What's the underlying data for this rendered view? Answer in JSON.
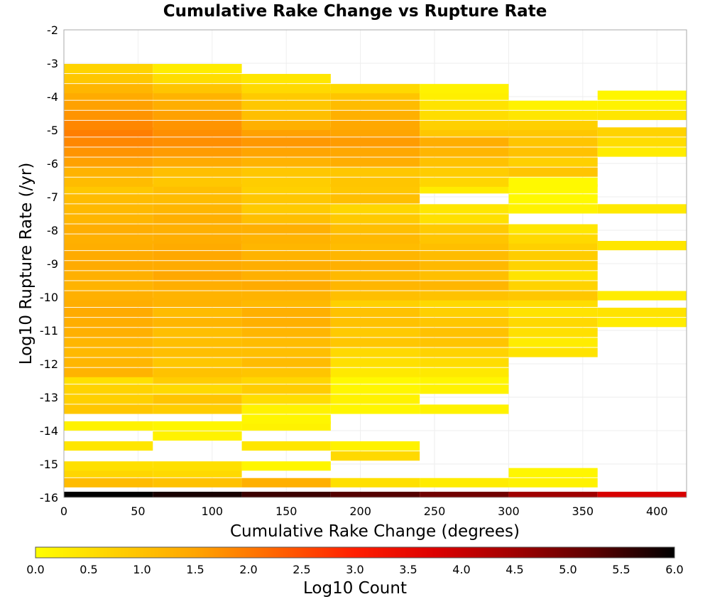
{
  "chart_data": {
    "type": "heatmap",
    "title": "Cumulative Rake Change vs Rupture Rate",
    "xlabel": "Cumulative Rake Change (degrees)",
    "ylabel": "Log10 Rupture Rate (/yr)",
    "xlim": [
      0,
      420
    ],
    "ylim": [
      -16,
      -2
    ],
    "x_ticks": [
      "0",
      "50",
      "100",
      "150",
      "200",
      "250",
      "300",
      "350",
      "400"
    ],
    "y_ticks": [
      "-2",
      "-3",
      "-4",
      "-5",
      "-6",
      "-7",
      "-8",
      "-9",
      "-10",
      "-11",
      "-12",
      "-13",
      "-14",
      "-15",
      "-16"
    ],
    "grid": true,
    "x_bin_edges": [
      0,
      60,
      120,
      180,
      240,
      300,
      360,
      420
    ],
    "y_bin_width": 0.28,
    "y_bin_bottom": -16,
    "columns": [
      {
        "x_bin": "0-60",
        "cells": [
          [
            -16.0,
            6.0
          ],
          [
            -15.7,
            1.1
          ],
          [
            -15.4,
            0.65
          ],
          [
            -15.2,
            0.5
          ],
          [
            -14.6,
            0.4
          ],
          [
            -14.0,
            0.2
          ],
          [
            -13.5,
            0.9
          ],
          [
            -13.2,
            0.75
          ],
          [
            -12.9,
            0.7
          ],
          [
            -12.6,
            0.5
          ],
          [
            -12.4,
            1.25
          ],
          [
            -12.1,
            1.2
          ],
          [
            -11.8,
            1.15
          ],
          [
            -11.5,
            1.2
          ],
          [
            -11.2,
            1.3
          ],
          [
            -10.9,
            1.35
          ],
          [
            -10.6,
            1.4
          ],
          [
            -10.3,
            1.35
          ],
          [
            -10.1,
            1.3
          ],
          [
            -9.8,
            1.25
          ],
          [
            -9.5,
            1.3
          ],
          [
            -9.2,
            1.4
          ],
          [
            -8.9,
            1.4
          ],
          [
            -8.6,
            1.35
          ],
          [
            -8.4,
            1.3
          ],
          [
            -8.1,
            1.35
          ],
          [
            -7.8,
            1.2
          ],
          [
            -7.5,
            1.15
          ],
          [
            -7.2,
            1.1
          ],
          [
            -6.9,
            0.9
          ],
          [
            -6.7,
            1.1
          ],
          [
            -6.4,
            1.25
          ],
          [
            -6.1,
            1.55
          ],
          [
            -5.8,
            1.7
          ],
          [
            -5.5,
            1.85
          ],
          [
            -5.2,
            1.95
          ],
          [
            -5.0,
            1.85
          ],
          [
            -4.7,
            1.7
          ],
          [
            -4.4,
            1.55
          ],
          [
            -4.1,
            1.4
          ],
          [
            -3.9,
            1.2
          ],
          [
            -3.6,
            0.9
          ],
          [
            -3.3,
            0.7
          ]
        ]
      },
      {
        "x_bin": "60-120",
        "cells": [
          [
            -16.0,
            5.8
          ],
          [
            -15.7,
            1.0
          ],
          [
            -15.4,
            0.6
          ],
          [
            -15.2,
            0.5
          ],
          [
            -14.3,
            0.2
          ],
          [
            -14.0,
            0.15
          ],
          [
            -13.5,
            0.8
          ],
          [
            -13.2,
            0.95
          ],
          [
            -12.9,
            0.6
          ],
          [
            -12.6,
            0.8
          ],
          [
            -12.4,
            1.0
          ],
          [
            -12.1,
            0.9
          ],
          [
            -11.8,
            1.05
          ],
          [
            -11.5,
            1.05
          ],
          [
            -11.2,
            1.05
          ],
          [
            -10.9,
            1.2
          ],
          [
            -10.6,
            1.1
          ],
          [
            -10.3,
            1.25
          ],
          [
            -10.1,
            1.25
          ],
          [
            -9.8,
            1.35
          ],
          [
            -9.5,
            1.45
          ],
          [
            -9.2,
            1.4
          ],
          [
            -8.9,
            1.45
          ],
          [
            -8.6,
            1.4
          ],
          [
            -8.4,
            1.35
          ],
          [
            -8.1,
            1.3
          ],
          [
            -7.8,
            1.3
          ],
          [
            -7.5,
            1.2
          ],
          [
            -7.2,
            1.1
          ],
          [
            -6.9,
            1.05
          ],
          [
            -6.7,
            0.9
          ],
          [
            -6.4,
            1.05
          ],
          [
            -6.1,
            1.4
          ],
          [
            -5.8,
            1.6
          ],
          [
            -5.5,
            1.75
          ],
          [
            -5.2,
            1.75
          ],
          [
            -5.0,
            1.7
          ],
          [
            -4.7,
            1.55
          ],
          [
            -4.4,
            1.35
          ],
          [
            -4.1,
            1.25
          ],
          [
            -3.9,
            0.95
          ],
          [
            -3.6,
            0.55
          ],
          [
            -3.3,
            0.3
          ]
        ]
      },
      {
        "x_bin": "120-180",
        "cells": [
          [
            -16.0,
            5.5
          ],
          [
            -15.7,
            1.3
          ],
          [
            -15.2,
            0.15
          ],
          [
            -14.6,
            0.4
          ],
          [
            -14.0,
            0.2
          ],
          [
            -13.8,
            0.15
          ],
          [
            -13.5,
            0.2
          ],
          [
            -13.2,
            0.55
          ],
          [
            -12.9,
            0.8
          ],
          [
            -12.6,
            0.65
          ],
          [
            -12.4,
            0.95
          ],
          [
            -12.1,
            1.1
          ],
          [
            -11.8,
            1.05
          ],
          [
            -11.5,
            1.1
          ],
          [
            -11.2,
            1.2
          ],
          [
            -10.9,
            1.3
          ],
          [
            -10.6,
            1.3
          ],
          [
            -10.3,
            1.15
          ],
          [
            -10.1,
            1.25
          ],
          [
            -9.8,
            1.4
          ],
          [
            -9.5,
            1.3
          ],
          [
            -9.2,
            1.35
          ],
          [
            -8.9,
            1.25
          ],
          [
            -8.6,
            1.2
          ],
          [
            -8.4,
            1.25
          ],
          [
            -8.1,
            1.3
          ],
          [
            -7.8,
            1.05
          ],
          [
            -7.5,
            0.85
          ],
          [
            -7.2,
            0.9
          ],
          [
            -6.9,
            0.75
          ],
          [
            -6.7,
            0.8
          ],
          [
            -6.4,
            0.9
          ],
          [
            -6.1,
            1.25
          ],
          [
            -5.8,
            1.5
          ],
          [
            -5.5,
            1.65
          ],
          [
            -5.2,
            1.55
          ],
          [
            -5.0,
            1.3
          ],
          [
            -4.7,
            1.05
          ],
          [
            -4.4,
            0.9
          ],
          [
            -4.1,
            0.85
          ],
          [
            -3.9,
            0.6
          ],
          [
            -3.6,
            0.4
          ]
        ]
      },
      {
        "x_bin": "180-240",
        "cells": [
          [
            -16.0,
            5.3
          ],
          [
            -15.7,
            0.5
          ],
          [
            -14.9,
            0.6
          ],
          [
            -14.6,
            0.2
          ],
          [
            -13.5,
            0.15
          ],
          [
            -13.2,
            0.2
          ],
          [
            -12.9,
            0.15
          ],
          [
            -12.6,
            0.1
          ],
          [
            -12.4,
            0.35
          ],
          [
            -12.1,
            0.5
          ],
          [
            -11.8,
            0.6
          ],
          [
            -11.5,
            0.9
          ],
          [
            -11.2,
            0.85
          ],
          [
            -10.9,
            1.0
          ],
          [
            -10.6,
            1.0
          ],
          [
            -10.3,
            0.75
          ],
          [
            -10.1,
            1.05
          ],
          [
            -9.8,
            1.2
          ],
          [
            -9.5,
            1.15
          ],
          [
            -9.2,
            1.3
          ],
          [
            -8.9,
            1.2
          ],
          [
            -8.6,
            1.1
          ],
          [
            -8.4,
            1.15
          ],
          [
            -8.1,
            1.05
          ],
          [
            -7.8,
            0.85
          ],
          [
            -7.5,
            0.65
          ],
          [
            -7.2,
            1.05
          ],
          [
            -6.9,
            0.9
          ],
          [
            -6.7,
            0.95
          ],
          [
            -6.4,
            0.9
          ],
          [
            -6.1,
            1.35
          ],
          [
            -5.8,
            1.45
          ],
          [
            -5.5,
            1.6
          ],
          [
            -5.2,
            1.5
          ],
          [
            -5.0,
            1.45
          ],
          [
            -4.7,
            1.3
          ],
          [
            -4.4,
            1.1
          ],
          [
            -4.1,
            0.95
          ],
          [
            -3.9,
            0.6
          ]
        ]
      },
      {
        "x_bin": "240-300",
        "cells": [
          [
            -16.0,
            5.0
          ],
          [
            -15.7,
            0.3
          ],
          [
            -13.5,
            0.2
          ],
          [
            -12.9,
            0.2
          ],
          [
            -12.6,
            0.15
          ],
          [
            -12.4,
            0.35
          ],
          [
            -12.1,
            0.55
          ],
          [
            -11.8,
            0.7
          ],
          [
            -11.5,
            0.95
          ],
          [
            -11.2,
            1.0
          ],
          [
            -10.9,
            0.9
          ],
          [
            -10.6,
            0.75
          ],
          [
            -10.3,
            0.6
          ],
          [
            -10.1,
            1.0
          ],
          [
            -9.8,
            1.2
          ],
          [
            -9.5,
            1.05
          ],
          [
            -9.2,
            1.15
          ],
          [
            -8.9,
            1.1
          ],
          [
            -8.6,
            1.05
          ],
          [
            -8.4,
            0.95
          ],
          [
            -8.1,
            0.85
          ],
          [
            -7.8,
            0.5
          ],
          [
            -7.5,
            0.4
          ],
          [
            -6.9,
            0.3
          ],
          [
            -6.7,
            0.65
          ],
          [
            -6.4,
            0.8
          ],
          [
            -6.1,
            1.0
          ],
          [
            -5.8,
            1.2
          ],
          [
            -5.5,
            1.35
          ],
          [
            -5.2,
            0.9
          ],
          [
            -5.0,
            0.75
          ],
          [
            -4.7,
            0.55
          ],
          [
            -4.4,
            0.45
          ],
          [
            -4.1,
            0.25
          ],
          [
            -3.9,
            0.2
          ]
        ]
      },
      {
        "x_bin": "300-360",
        "cells": [
          [
            -16.0,
            4.5
          ],
          [
            -15.7,
            0.2
          ],
          [
            -15.4,
            0.15
          ],
          [
            -11.8,
            0.45
          ],
          [
            -11.5,
            0.3
          ],
          [
            -11.2,
            0.5
          ],
          [
            -10.9,
            0.6
          ],
          [
            -10.6,
            0.45
          ],
          [
            -10.3,
            0.55
          ],
          [
            -10.1,
            0.9
          ],
          [
            -9.8,
            0.7
          ],
          [
            -9.5,
            0.45
          ],
          [
            -9.2,
            0.7
          ],
          [
            -8.9,
            0.8
          ],
          [
            -8.6,
            0.75
          ],
          [
            -8.4,
            0.6
          ],
          [
            -8.1,
            0.4
          ],
          [
            -7.5,
            0.2
          ],
          [
            -7.2,
            0.1
          ],
          [
            -6.9,
            0.1
          ],
          [
            -6.7,
            0.1
          ],
          [
            -6.4,
            0.95
          ],
          [
            -6.1,
            0.75
          ],
          [
            -5.8,
            1.0
          ],
          [
            -5.5,
            0.95
          ],
          [
            -5.2,
            0.9
          ],
          [
            -5.0,
            0.75
          ],
          [
            -4.7,
            0.4
          ],
          [
            -4.4,
            0.2
          ]
        ]
      },
      {
        "x_bin": "360-420",
        "cells": [
          [
            -16.0,
            3.8
          ],
          [
            -10.9,
            0.3
          ],
          [
            -10.6,
            0.45
          ],
          [
            -10.1,
            0.3
          ],
          [
            -8.6,
            0.4
          ],
          [
            -7.5,
            0.35
          ],
          [
            -5.8,
            0.3
          ],
          [
            -5.5,
            0.55
          ],
          [
            -5.2,
            0.7
          ],
          [
            -4.7,
            0.4
          ],
          [
            -4.4,
            0.2
          ],
          [
            -4.1,
            0.15
          ]
        ]
      }
    ],
    "colorbar": {
      "label": "Log10 Count",
      "range": [
        0.0,
        6.0
      ],
      "ticks": [
        "0.0",
        "0.5",
        "1.0",
        "1.5",
        "2.0",
        "2.5",
        "3.0",
        "3.5",
        "4.0",
        "4.5",
        "5.0",
        "5.5",
        "6.0"
      ],
      "colors": [
        "#ffff00",
        "#ffd000",
        "#ffa500",
        "#ff6400",
        "#ff1e00",
        "#dc0000",
        "#a00000",
        "#5a0000",
        "#000000"
      ]
    }
  }
}
